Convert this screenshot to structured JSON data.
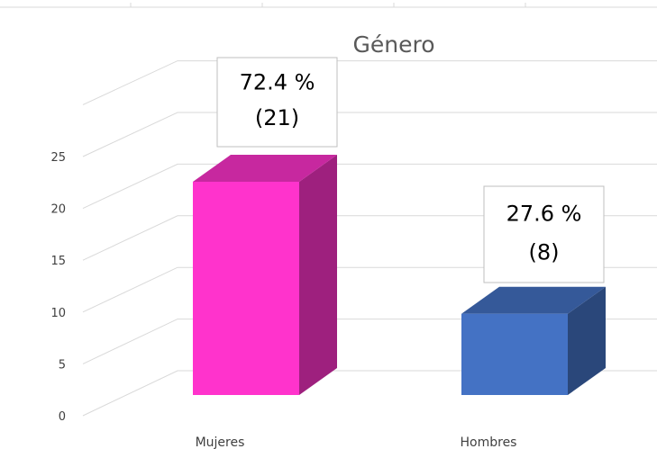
{
  "chart_data": {
    "type": "bar",
    "title": "Género",
    "categories": [
      "Mujeres",
      "Hombres"
    ],
    "values": [
      21,
      8
    ],
    "data_labels": [
      {
        "percent": "72.4 %",
        "count": "(21)"
      },
      {
        "percent": "27.6 %",
        "count": "(8)"
      }
    ],
    "ylim": [
      0,
      25
    ],
    "yticks": [
      "0",
      "5",
      "10",
      "15",
      "20",
      "25"
    ],
    "grid": true,
    "legend": "none",
    "style": "3d-column",
    "colors": {
      "Mujeres": "#FF33CC",
      "Hombres": "#4472C4",
      "grid": "#D9D9D9"
    }
  }
}
